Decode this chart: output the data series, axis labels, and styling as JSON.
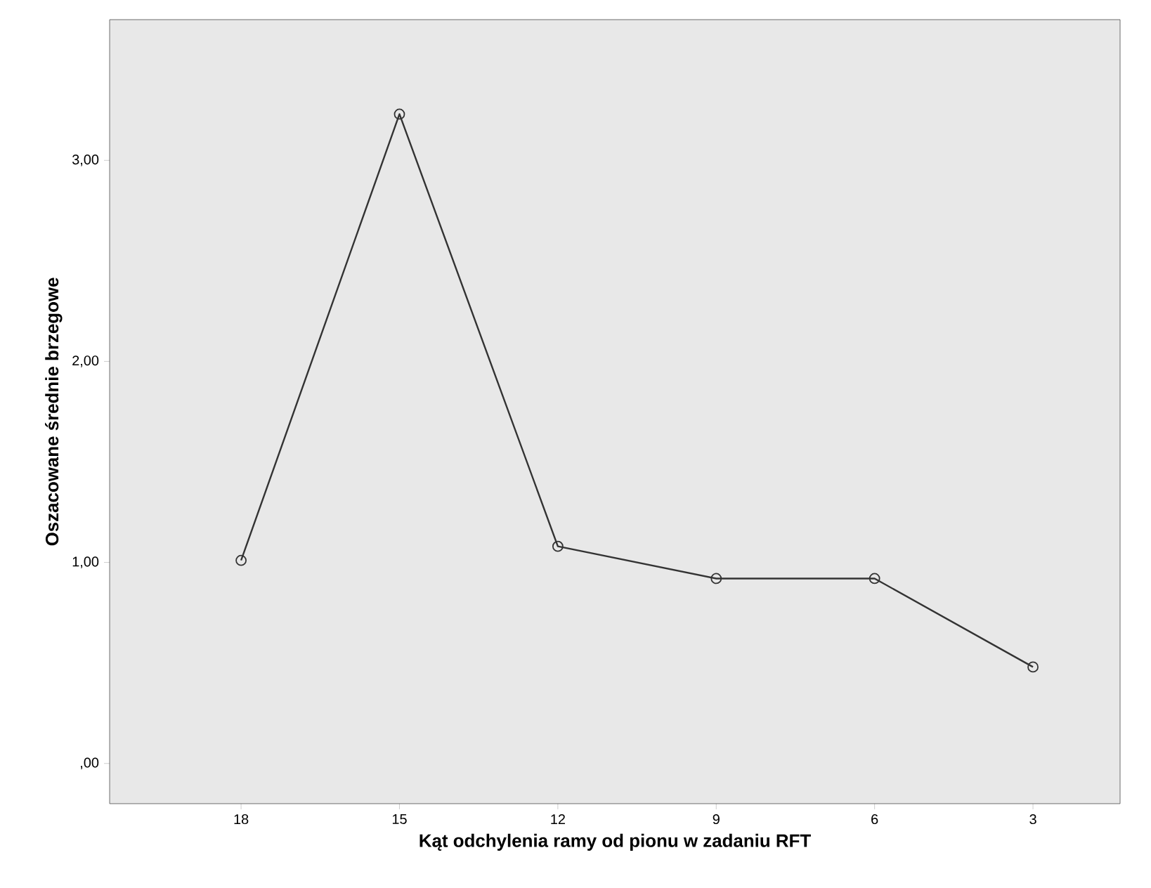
{
  "chart_data": {
    "type": "line",
    "xlabel": "Kąt odchylenia ramy od pionu w zadaniu RFT",
    "ylabel": "Oszacowane średnie brzegowe",
    "categories": [
      "18",
      "15",
      "12",
      "9",
      "6",
      "3"
    ],
    "values": [
      1.01,
      3.23,
      1.08,
      0.92,
      0.92,
      0.48
    ],
    "color": "#333333",
    "marker": "circle",
    "line_style": "solid",
    "grid": false,
    "ylim": [
      -0.2,
      3.7
    ],
    "yticks": [
      {
        "value": 0,
        "label": ",00"
      },
      {
        "value": 1,
        "label": "1,00"
      },
      {
        "value": 2,
        "label": "2,00"
      },
      {
        "value": 3,
        "label": "3,00"
      }
    ]
  }
}
